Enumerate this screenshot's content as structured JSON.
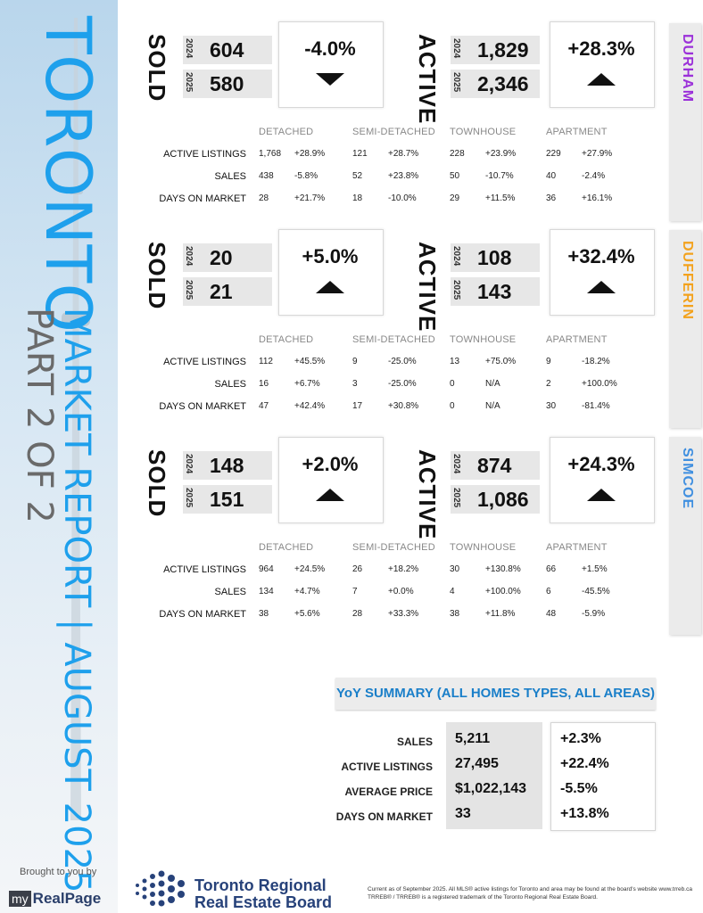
{
  "sidebar": {
    "city": "TORONTO",
    "report_line1": "MARKET REPORT | AUGUST 2025",
    "report_line2": "PART 2 OF 2",
    "brought_by": "Brought to you by",
    "sponsor_my": "my",
    "sponsor_name": "RealPage"
  },
  "labels": {
    "sold": "SOLD",
    "active": "ACTIVE",
    "year_2024": "2024",
    "year_2025": "2025",
    "columns": [
      "DETACHED",
      "SEMI-DETACHED",
      "TOWNHOUSE",
      "APARTMENT"
    ],
    "rows": [
      "ACTIVE LISTINGS",
      "SALES",
      "DAYS ON MARKET"
    ]
  },
  "regions": [
    {
      "name": "DURHAM",
      "color": "#9b30d9",
      "sold": {
        "y2024": "604",
        "y2025": "580",
        "pct": "-4.0%",
        "dir": "down"
      },
      "active": {
        "y2024": "1,829",
        "y2025": "2,346",
        "pct": "+28.3%",
        "dir": "up"
      },
      "table": [
        [
          [
            "1,768",
            "+28.9%"
          ],
          [
            "121",
            "+28.7%"
          ],
          [
            "228",
            "+23.9%"
          ],
          [
            "229",
            "+27.9%"
          ]
        ],
        [
          [
            "438",
            "-5.8%"
          ],
          [
            "52",
            "+23.8%"
          ],
          [
            "50",
            "-10.7%"
          ],
          [
            "40",
            "-2.4%"
          ]
        ],
        [
          [
            "28",
            "+21.7%"
          ],
          [
            "18",
            "-10.0%"
          ],
          [
            "29",
            "+11.5%"
          ],
          [
            "36",
            "+16.1%"
          ]
        ]
      ]
    },
    {
      "name": "DUFFERIN",
      "color": "#f3a21c",
      "sold": {
        "y2024": "20",
        "y2025": "21",
        "pct": "+5.0%",
        "dir": "up"
      },
      "active": {
        "y2024": "108",
        "y2025": "143",
        "pct": "+32.4%",
        "dir": "up"
      },
      "table": [
        [
          [
            "112",
            "+45.5%"
          ],
          [
            "9",
            "-25.0%"
          ],
          [
            "13",
            "+75.0%"
          ],
          [
            "9",
            "-18.2%"
          ]
        ],
        [
          [
            "16",
            "+6.7%"
          ],
          [
            "3",
            "-25.0%"
          ],
          [
            "0",
            "N/A"
          ],
          [
            "2",
            "+100.0%"
          ]
        ],
        [
          [
            "47",
            "+42.4%"
          ],
          [
            "17",
            "+30.8%"
          ],
          [
            "0",
            "N/A"
          ],
          [
            "30",
            "-81.4%"
          ]
        ]
      ]
    },
    {
      "name": "SIMCOE",
      "color": "#3f8fe0",
      "sold": {
        "y2024": "148",
        "y2025": "151",
        "pct": "+2.0%",
        "dir": "up"
      },
      "active": {
        "y2024": "874",
        "y2025": "1,086",
        "pct": "+24.3%",
        "dir": "up"
      },
      "table": [
        [
          [
            "964",
            "+24.5%"
          ],
          [
            "26",
            "+18.2%"
          ],
          [
            "30",
            "+130.8%"
          ],
          [
            "66",
            "+1.5%"
          ]
        ],
        [
          [
            "134",
            "+4.7%"
          ],
          [
            "7",
            "+0.0%"
          ],
          [
            "4",
            "+100.0%"
          ],
          [
            "6",
            "-45.5%"
          ]
        ],
        [
          [
            "38",
            "+5.6%"
          ],
          [
            "28",
            "+33.3%"
          ],
          [
            "38",
            "+11.8%"
          ],
          [
            "48",
            "-5.9%"
          ]
        ]
      ]
    }
  ],
  "summary": {
    "title": "YoY SUMMARY (ALL HOMES TYPES, ALL AREAS)",
    "rows": [
      {
        "label": "SALES",
        "value": "5,211",
        "pct": "+2.3%"
      },
      {
        "label": "ACTIVE LISTINGS",
        "value": "27,495",
        "pct": "+22.4%"
      },
      {
        "label": "AVERAGE PRICE",
        "value": "$1,022,143",
        "pct": "-5.5%"
      },
      {
        "label": "DAYS ON MARKET",
        "value": "33",
        "pct": "+13.8%"
      }
    ]
  },
  "footer": {
    "board_line1": "Toronto Regional",
    "board_line2": "Real Estate Board",
    "note_line1": "Current as of September 2025.  All MLS® active listings for Toronto and area may be found at the board's website www.trreb.ca",
    "note_line2": "TRREB® / TRREB® is a registered trademark of the Toronto Regional Real Estate Board."
  }
}
